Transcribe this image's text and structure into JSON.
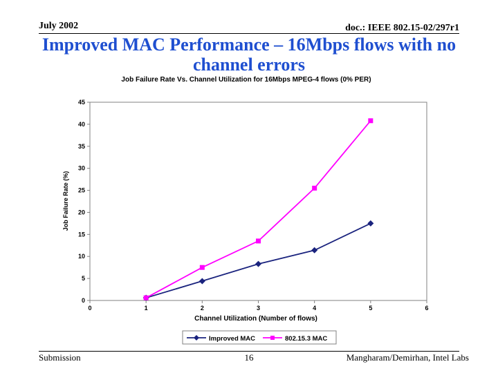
{
  "header": {
    "date": "July 2002",
    "doc_id": "doc.: IEEE 802.15-02/297r1"
  },
  "slide_title": "Improved MAC Performance – 16Mbps flows with no channel errors",
  "footer": {
    "left": "Submission",
    "page": "16",
    "right": "Mangharam/Demirhan, Intel Labs"
  },
  "chart_data": {
    "type": "line",
    "title": "Job Failure Rate Vs. Channel Utilization for 16Mbps MPEG-4 flows (0% PER)",
    "xlabel": "Channel Utilization (Number of flows)",
    "ylabel": "Job Failure Rate (%)",
    "xlim": [
      0,
      6
    ],
    "ylim": [
      0,
      45
    ],
    "xticks": [
      "0",
      "1",
      "2",
      "3",
      "4",
      "5",
      "6"
    ],
    "yticks": [
      "0",
      "5",
      "10",
      "15",
      "20",
      "25",
      "30",
      "35",
      "40",
      "45"
    ],
    "grid": false,
    "legend": "bottom",
    "series": [
      {
        "name": "Improved MAC",
        "color": "#1a237e",
        "marker": "diamond",
        "x": [
          1,
          2,
          3,
          4,
          5
        ],
        "y": [
          0.6,
          4.4,
          8.3,
          11.4,
          17.5
        ]
      },
      {
        "name": "802.15.3 MAC",
        "color": "#ff00ff",
        "marker": "square",
        "x": [
          1,
          2,
          3,
          4,
          5
        ],
        "y": [
          0.6,
          7.5,
          13.5,
          25.5,
          40.8
        ]
      }
    ]
  }
}
